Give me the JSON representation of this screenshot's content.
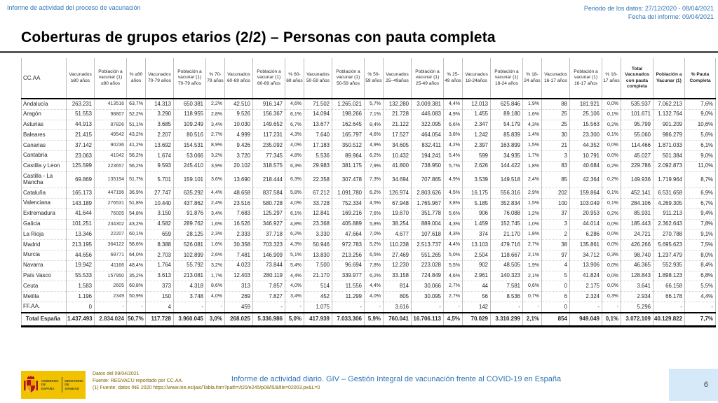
{
  "page": {
    "top_left": "Informe de actividad del proceso de vacunación",
    "period": "Periodo de los datos: 27/12/2020 - 08/04/2021",
    "report_date": "Fecha del informe: 09/04/2021",
    "title": "Coberturas de grupos etarios (2/2) – Personas con pauta completa",
    "page_number": "6"
  },
  "colors": {
    "header_blue": "#2E74B5",
    "footnote_olive": "#7F6000",
    "logo_yellow": "#F0C200",
    "page_badge_blue": "#D6E9F8",
    "rule_gray": "#595959"
  },
  "table": {
    "columns": [
      "CC.AA",
      "Vacunados ≥80 años",
      "Población a vacunar (1) ≥80 años",
      "% ≥80 años",
      "Vacunados 70-79 años",
      "Población a vacunar (1) 70-79 años",
      "% 70-79 años",
      "Vacunados 60-69 años",
      "Población a vacunar (1) 60-69 años",
      "% 60-69 años",
      "Vacunados 50-59 años",
      "Población a vacunar (1) 50-59 años",
      "% 50-59 años",
      "Vacunados 25–49años",
      "Población a vacunar (1) 25-49 años",
      "% 25-49 años",
      "Vacunados 18-24años",
      "Población a vacunar (1) 18-24 años",
      "% 18-24 años",
      "Vacunados 16-17 años",
      "Población a vacunar (1) 16-17 años",
      "% 16-17 años",
      "Total Vacunados con pauta completa",
      "Población a Vacunar (1)",
      "% Pauta Completa"
    ],
    "rows": [
      [
        "Andalucía",
        "263.231",
        "413516",
        "63,7%",
        "14.313",
        "650.381",
        "2,2%",
        "42.510",
        "916.147",
        "4,6%",
        "71.502",
        "1.265.021",
        "5,7%",
        "132.280",
        "3.009.381",
        "4,4%",
        "12.013",
        "625.846",
        "1,9%",
        "88",
        "181.921",
        "0,0%",
        "535.937",
        "7.062.213",
        "7,6%"
      ],
      [
        "Aragón",
        "51.553",
        "98807",
        "52,2%",
        "3.290",
        "118.955",
        "2,8%",
        "9.526",
        "156.367",
        "6,1%",
        "14.094",
        "198.266",
        "7,1%",
        "21.728",
        "446.083",
        "4,9%",
        "1.455",
        "89.180",
        "1,6%",
        "25",
        "25.106",
        "0,1%",
        "101.671",
        "1.132.764",
        "9,0%"
      ],
      [
        "Asturias",
        "44.913",
        "87826",
        "51,1%",
        "3.685",
        "109.249",
        "3,4%",
        "10.030",
        "149.652",
        "6,7%",
        "13.677",
        "162.645",
        "8,4%",
        "21.122",
        "322.095",
        "6,6%",
        "2.347",
        "54.179",
        "4,3%",
        "25",
        "15.563",
        "0,2%",
        "95.799",
        "901.209",
        "10,6%"
      ],
      [
        "Baleares",
        "21.415",
        "49542",
        "43,2%",
        "2.207",
        "80.516",
        "2,7%",
        "4.999",
        "117.231",
        "4,3%",
        "7.640",
        "165.797",
        "4,6%",
        "17.527",
        "464.054",
        "3,8%",
        "1.242",
        "85.839",
        "1,4%",
        "30",
        "23.300",
        "0,1%",
        "55.060",
        "986.279",
        "5,6%"
      ],
      [
        "Canarias",
        "37.142",
        "90236",
        "41,2%",
        "13.692",
        "154.531",
        "8,9%",
        "9.426",
        "235.092",
        "4,0%",
        "17.183",
        "350.512",
        "4,9%",
        "34.605",
        "832.411",
        "4,2%",
        "2.397",
        "163.899",
        "1,5%",
        "21",
        "44.352",
        "0,0%",
        "114.466",
        "1.871.033",
        "6,1%"
      ],
      [
        "Cantabria",
        "23.063",
        "41042",
        "56,2%",
        "1.674",
        "53.066",
        "3,2%",
        "3.720",
        "77.345",
        "4,8%",
        "5.536",
        "89.964",
        "6,2%",
        "10.432",
        "194.241",
        "5,4%",
        "599",
        "34.935",
        "1,7%",
        "3",
        "10.791",
        "0,0%",
        "45.027",
        "501.384",
        "9,0%"
      ],
      [
        "Castilla y Leon",
        "125.599",
        "223657",
        "56,2%",
        "9.593",
        "245.410",
        "3,9%",
        "20.102",
        "318.575",
        "6,3%",
        "29.983",
        "381.175",
        "7,9%",
        "41.800",
        "738.950",
        "5,7%",
        "2.626",
        "144.422",
        "1,8%",
        "83",
        "40.684",
        "0,2%",
        "229.786",
        "2.092.873",
        "11,0%"
      ],
      [
        "Castilla - La Mancha",
        "69.869",
        "135194",
        "51,7%",
        "5.701",
        "159.101",
        "3,6%",
        "13.690",
        "218.444",
        "6,3%",
        "22.358",
        "307.478",
        "7,3%",
        "34.694",
        "707.865",
        "4,9%",
        "3.539",
        "149.518",
        "2,4%",
        "85",
        "42.364",
        "0,2%",
        "149.936",
        "1.719.964",
        "8,7%"
      ],
      [
        "Cataluña",
        "165.173",
        "447196",
        "36,9%",
        "27.747",
        "635.292",
        "4,4%",
        "48.658",
        "837.584",
        "5,8%",
        "67.212",
        "1.091.780",
        "6,2%",
        "126.974",
        "2.803.626",
        "4,5%",
        "16.175",
        "556.316",
        "2,9%",
        "202",
        "159.864",
        "0,1%",
        "452.141",
        "6.531.658",
        "6,9%"
      ],
      [
        "Valenciana",
        "143.189",
        "276531",
        "51,8%",
        "10.440",
        "437.862",
        "2,4%",
        "23.516",
        "580.728",
        "4,0%",
        "33.728",
        "752.334",
        "4,5%",
        "67.948",
        "1.765.967",
        "3,8%",
        "5.185",
        "352.834",
        "1,5%",
        "100",
        "103.049",
        "0,1%",
        "284.106",
        "4.269.305",
        "6,7%"
      ],
      [
        "Extremadura",
        "41.644",
        "76005",
        "54,8%",
        "3.150",
        "91.876",
        "3,4%",
        "7.683",
        "125.297",
        "6,1%",
        "12.841",
        "169.216",
        "7,6%",
        "19.670",
        "351.778",
        "5,6%",
        "906",
        "76.088",
        "1,2%",
        "37",
        "20.953",
        "0,2%",
        "85.931",
        "911.213",
        "9,4%"
      ],
      [
        "Galicia",
        "101.251",
        "234302",
        "43,2%",
        "4.582",
        "289.762",
        "1,6%",
        "16.526",
        "346.927",
        "4,8%",
        "23.368",
        "405.889",
        "5,8%",
        "38.254",
        "889.004",
        "4,3%",
        "1.459",
        "152.745",
        "1,0%",
        "3",
        "44.014",
        "0,0%",
        "185.443",
        "2.362.643",
        "7,8%"
      ],
      [
        "La Rioja",
        "13.346",
        "22207",
        "60,1%",
        "659",
        "28.125",
        "2,3%",
        "2.333",
        "37.718",
        "6,2%",
        "3.330",
        "47.664",
        "7,0%",
        "4.677",
        "107.618",
        "4,3%",
        "374",
        "21.170",
        "1,8%",
        "2",
        "6.286",
        "0,0%",
        "24.721",
        "270.788",
        "9,1%"
      ],
      [
        "Madrid",
        "213.195",
        "364122",
        "58,6%",
        "8.388",
        "526.081",
        "1,6%",
        "30.358",
        "703.323",
        "4,3%",
        "50.946",
        "972.783",
        "5,2%",
        "110.238",
        "2.513.737",
        "4,4%",
        "13.103",
        "479.716",
        "2,7%",
        "38",
        "135.861",
        "0,0%",
        "426.266",
        "5.695.623",
        "7,5%"
      ],
      [
        "Murcia",
        "44.656",
        "69771",
        "64,0%",
        "2.703",
        "102.899",
        "2,6%",
        "7.481",
        "146.909",
        "5,1%",
        "13.830",
        "213.256",
        "6,5%",
        "27.469",
        "551.265",
        "5,0%",
        "2.504",
        "118.667",
        "2,1%",
        "97",
        "34.712",
        "0,3%",
        "98.740",
        "1.237.479",
        "8,0%"
      ],
      [
        "Navarra",
        "19.942",
        "41166",
        "48,4%",
        "1.764",
        "55.792",
        "3,2%",
        "4.023",
        "73.844",
        "5,4%",
        "7.500",
        "96.694",
        "7,8%",
        "12.230",
        "223.028",
        "5,5%",
        "902",
        "48.505",
        "1,9%",
        "4",
        "13.906",
        "0,0%",
        "46.365",
        "552.935",
        "8,4%"
      ],
      [
        "País Vasco",
        "55.533",
        "157950",
        "35,2%",
        "3.613",
        "213.081",
        "1,7%",
        "12.403",
        "280.119",
        "4,4%",
        "21.170",
        "339.977",
        "6,2%",
        "33.158",
        "724.849",
        "4,6%",
        "2.961",
        "140.323",
        "2,1%",
        "5",
        "41.824",
        "0,0%",
        "128.843",
        "1.898.123",
        "6,8%"
      ],
      [
        "Ceuta",
        "1.583",
        "2605",
        "60,8%",
        "373",
        "4.318",
        "8,6%",
        "313",
        "7.857",
        "4,0%",
        "514",
        "11.556",
        "4,4%",
        "814",
        "30.066",
        "2,7%",
        "44",
        "7.581",
        "0,6%",
        "0",
        "2.175",
        "0,0%",
        "3.641",
        "66.158",
        "5,5%"
      ],
      [
        "Melilla",
        "1.196",
        "2349",
        "50,9%",
        "150",
        "3.748",
        "4,0%",
        "269",
        "7.827",
        "3,4%",
        "452",
        "11.299",
        "4,0%",
        "805",
        "30.095",
        "2,7%",
        "56",
        "8.536",
        "0,7%",
        "6",
        "2.324",
        "0,3%",
        "2.934",
        "66.178",
        "4,4%"
      ],
      [
        "FF.AA.",
        "0",
        "-",
        "-",
        "4",
        "-",
        "-",
        "459",
        "-",
        "-",
        "1.075",
        "-",
        "-",
        "3.616",
        "-",
        "-",
        "142",
        "-",
        "-",
        "0",
        "-",
        "-",
        "5.296",
        "-",
        "-"
      ]
    ],
    "total_row": [
      "Total España",
      "1.437.493",
      "2.834.024",
      "50,7%",
      "117.728",
      "3.960.045",
      "3,0%",
      "268.025",
      "5.336.986",
      "5,0%",
      "417.939",
      "7.033.306",
      "5,9%",
      "760.041",
      "16.706.113",
      "4,5%",
      "70.029",
      "3.310.299",
      "2,1%",
      "854",
      "949.049",
      "0,1%",
      "3.072.109",
      "40.129.822",
      "7,7%"
    ]
  },
  "footer": {
    "logo": {
      "gobierno": "GOBIERNO DE ESPAÑA",
      "ministerio": "MINISTERIO DE SANIDAD"
    },
    "line1": "Datos del 09/04/2021",
    "line2": "Fuente: REGVACU reportado por CC.AA.",
    "line3": "(1) Fuente: datos INE 2020 https://www.ine.es/jaxi/Tabla.htm?path=/t20/e245/p08/l0/&file=02003.px&L=0",
    "center": "Informe de actividad diario. GIV – Gestión Integral de vacunación frente al COVID-19 en España"
  }
}
